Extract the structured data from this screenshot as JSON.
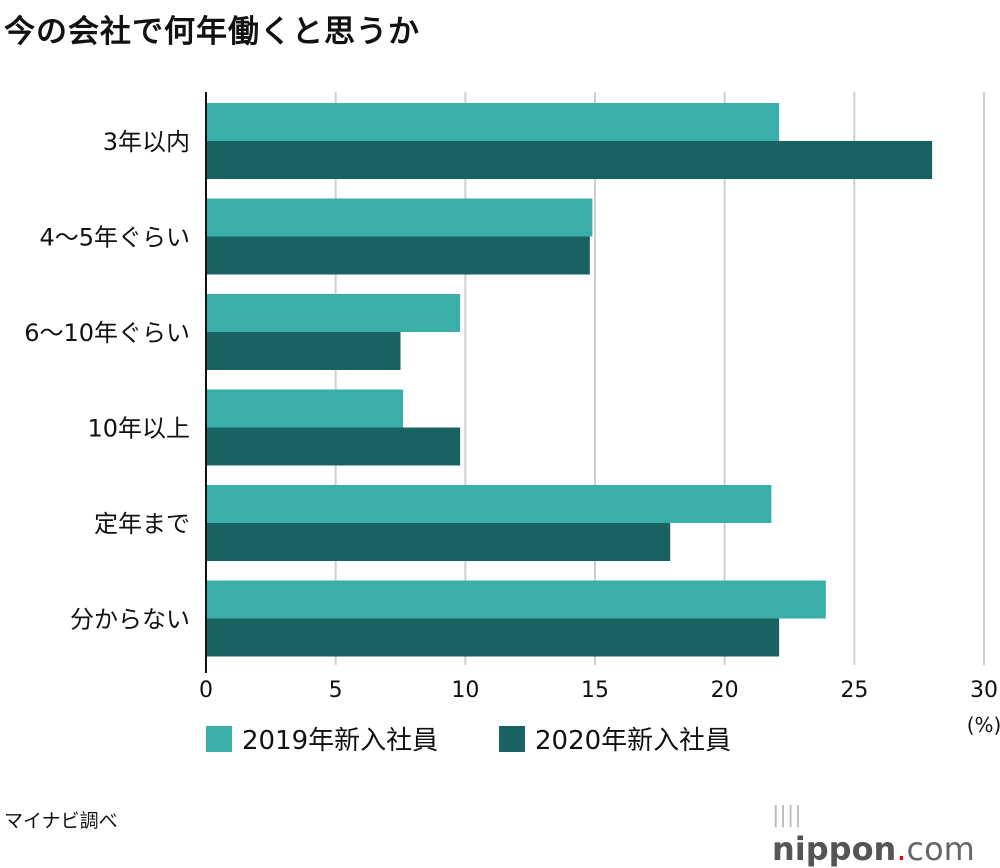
{
  "title": "今の会社で何年働くと思うか",
  "source": "マイナビ調べ",
  "logo": {
    "bold": "nippon",
    "dot": ".",
    "rest": "com"
  },
  "chart_data": {
    "type": "bar",
    "orientation": "horizontal",
    "title": "今の会社で何年働くと思うか",
    "categories": [
      "3年以内",
      "4〜5年ぐらい",
      "6〜10年ぐらい",
      "10年以上",
      "定年まで",
      "分からない"
    ],
    "series": [
      {
        "name": "2019年新入社員",
        "color": "#3aaea9",
        "values": [
          22.1,
          14.9,
          9.8,
          7.6,
          21.8,
          23.9
        ]
      },
      {
        "name": "2020年新入社員",
        "color": "#186261",
        "values": [
          28.0,
          14.8,
          7.5,
          9.8,
          17.9,
          22.1
        ]
      }
    ],
    "xlim": [
      0,
      30
    ],
    "xticks": [
      "0",
      "5",
      "10",
      "15",
      "20",
      "25",
      "30"
    ],
    "unit_label": "(%)",
    "grid": true,
    "legend_position": "bottom"
  }
}
